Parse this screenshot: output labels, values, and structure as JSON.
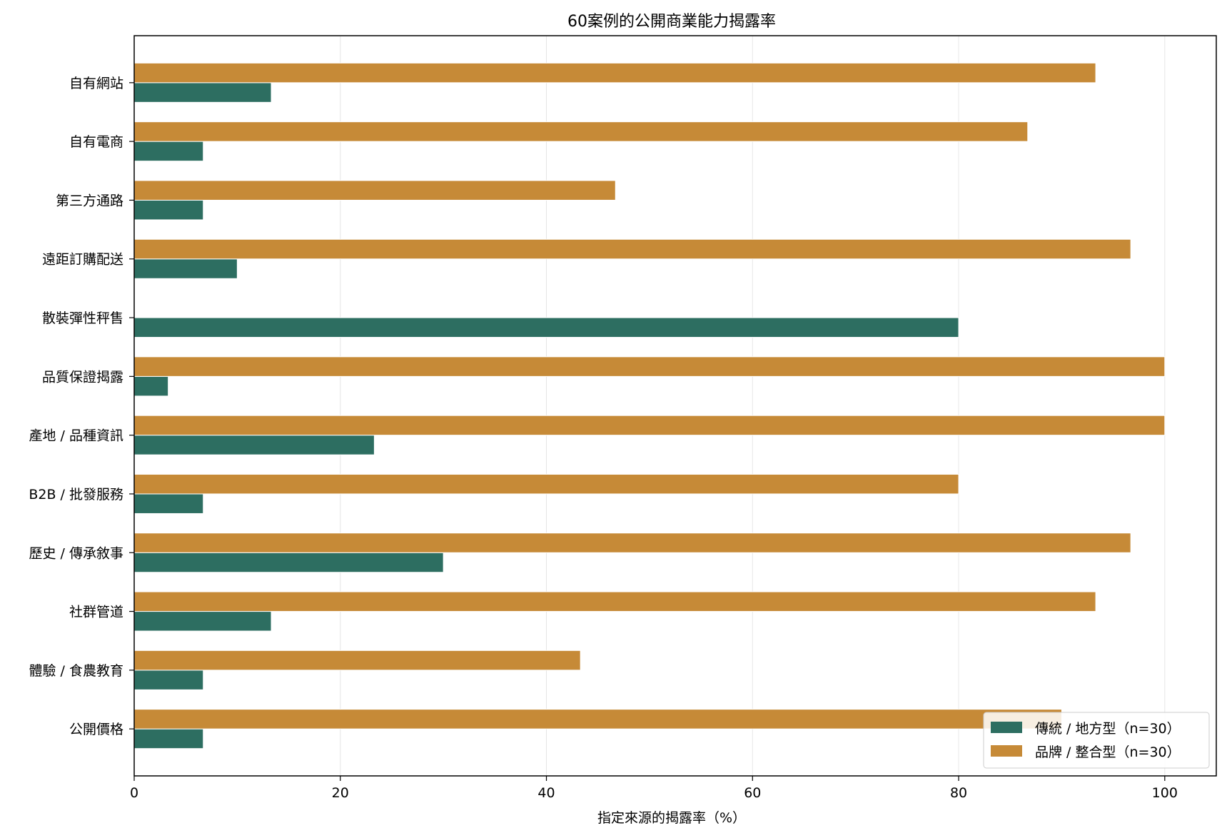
{
  "chart_data": {
    "type": "bar",
    "orientation": "horizontal",
    "title": "60案例的公開商業能力揭露率",
    "xlabel": "指定來源的揭露率（%）",
    "ylabel": "",
    "xlim": [
      0,
      105
    ],
    "xticks": [
      0,
      20,
      40,
      60,
      80,
      100
    ],
    "grid": "vertical",
    "legend_position": "bottom-right",
    "categories": [
      "自有網站",
      "自有電商",
      "第三方通路",
      "遠距訂購配送",
      "散裝彈性秤售",
      "品質保證揭露",
      "產地 / 品種資訊",
      "B2B / 批發服務",
      "歷史 / 傳承敘事",
      "社群管道",
      "體驗 / 食農教育",
      "公開價格"
    ],
    "series": [
      {
        "name": "傳統 / 地方型（n=30）",
        "color": "#2d6e61",
        "values": [
          13.3,
          6.7,
          6.7,
          10.0,
          80.0,
          3.3,
          23.3,
          6.7,
          30.0,
          13.3,
          6.7,
          6.7
        ]
      },
      {
        "name": "品牌 / 整合型（n=30）",
        "color": "#c68a37",
        "values": [
          93.3,
          86.7,
          46.7,
          96.7,
          0,
          100.0,
          100.0,
          80.0,
          96.7,
          93.3,
          43.3,
          90.0
        ]
      }
    ]
  }
}
